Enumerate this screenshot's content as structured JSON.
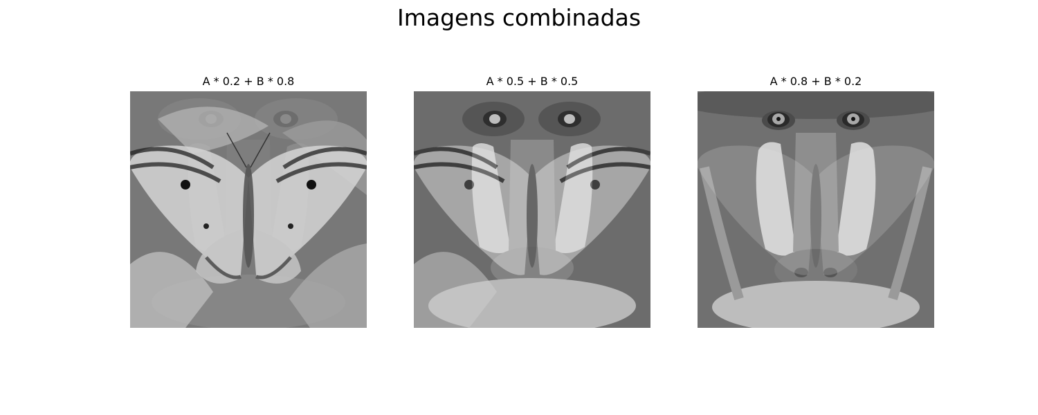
{
  "figure": {
    "title": "Imagens combinadas"
  },
  "panels": [
    {
      "title": "A * 0.2 + B * 0.8",
      "weight_a": 0.2,
      "weight_b": 0.8,
      "colormap": "gray",
      "description_a": "mandrill face",
      "description_b": "butterfly on leaves"
    },
    {
      "title": "A * 0.5 + B * 0.5",
      "weight_a": 0.5,
      "weight_b": 0.5,
      "colormap": "gray",
      "description_a": "mandrill face",
      "description_b": "butterfly on leaves"
    },
    {
      "title": "A * 0.8 + B * 0.2",
      "weight_a": 0.8,
      "weight_b": 0.2,
      "colormap": "gray",
      "description_a": "mandrill face",
      "description_b": "butterfly on leaves"
    }
  ]
}
